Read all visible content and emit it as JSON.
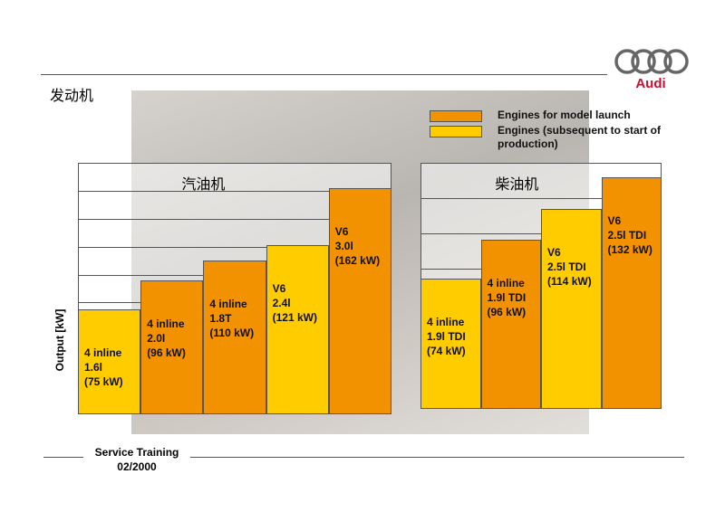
{
  "title": "发动机",
  "brand": "Audi",
  "footer": {
    "line1": "Service Training",
    "line2": "02/2000"
  },
  "legend": [
    {
      "label": "Engines for model launch",
      "color": "#f39200"
    },
    {
      "label": "Engines (subsequent to start of production)",
      "color": "#ffcc00"
    }
  ],
  "chart_data": [
    {
      "type": "bar",
      "title": "汽油机",
      "y_label": "Output [kW]",
      "categories": [
        "4 inline\n1.6l\n(75 kW)",
        "4 inline\n2.0l\n(96 kW)",
        "4 inline\n1.8T\n(110 kW)",
        "V6\n2.4l\n(121 kW)",
        "V6\n3.0l\n(162 kW)"
      ],
      "values": [
        75,
        96,
        110,
        121,
        162
      ],
      "colors": [
        "#ffcc00",
        "#f39200",
        "#f39200",
        "#ffcc00",
        "#f39200"
      ],
      "ylim": [
        0,
        180
      ],
      "yticks": [
        80,
        100,
        120,
        140,
        160
      ],
      "grid": true
    },
    {
      "type": "bar",
      "title": "柴油机",
      "categories": [
        "4 inline\n1.9l TDI\n(74 kW)",
        "4 inline\n1.9l TDI\n(96 kW)",
        "V6\n2.5l TDI\n(114 kW)",
        "V6\n2.5l TDI\n(132 kW)"
      ],
      "values": [
        74,
        96,
        114,
        132
      ],
      "colors": [
        "#ffcc00",
        "#f39200",
        "#ffcc00",
        "#f39200"
      ],
      "ylim": [
        0,
        140
      ],
      "yticks": [
        80,
        100,
        120
      ],
      "grid": true
    }
  ]
}
